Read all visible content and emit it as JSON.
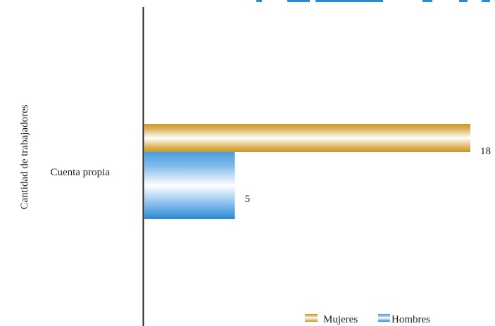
{
  "chart_data": {
    "type": "bar",
    "orientation": "horizontal",
    "categories": [
      "Cuenta propia"
    ],
    "series": [
      {
        "name": "Mujeres",
        "values": [
          18
        ],
        "color": "#d9ab3d"
      },
      {
        "name": "Hombres",
        "values": [
          5
        ],
        "color": "#2f8fd8"
      }
    ],
    "data_labels": [
      "18",
      "5"
    ],
    "ylabel": "Cantidad de trabajadores",
    "xlim": [
      0,
      18
    ],
    "grid": false,
    "legend": {
      "position": "bottom-right",
      "items": [
        "Mujeres",
        "Hombres"
      ]
    }
  }
}
